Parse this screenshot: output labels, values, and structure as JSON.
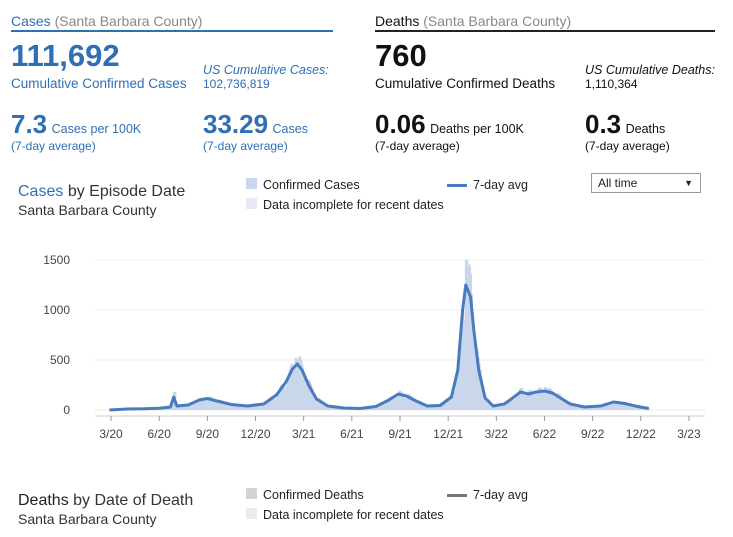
{
  "cases_panel": {
    "tab_title": "Cases",
    "tab_county": "(Santa Barbara County)",
    "total": "111,692",
    "total_label": "Cumulative Confirmed Cases",
    "us_label": "US Cumulative Cases:",
    "us_value": "102,736,819",
    "rate_value": "7.3",
    "rate_label": "Cases per 100K",
    "rate_note": "(7-day average)",
    "avg_value": "33.29",
    "avg_label": "Cases",
    "avg_note": "(7-day average)"
  },
  "deaths_panel": {
    "tab_title": "Deaths",
    "tab_county": "(Santa Barbara County)",
    "total": "760",
    "total_label": "Cumulative Confirmed Deaths",
    "us_label": "US Cumulative Deaths:",
    "us_value": "1,110,364",
    "rate_value": "0.06",
    "rate_label": "Deaths per 100K",
    "rate_note": "(7-day average)",
    "avg_value": "0.3",
    "avg_label": "Deaths",
    "avg_note": "(7-day average)"
  },
  "cases_chart": {
    "title_highlight": "Cases",
    "title_rest": "by Episode Date",
    "subtitle": "Santa Barbara County",
    "legend_confirmed": "Confirmed Cases",
    "legend_avg": "7-day avg",
    "legend_incomplete": "Data incomplete for recent dates",
    "range_select": "All time"
  },
  "deaths_chart": {
    "title_highlight": "Deaths",
    "title_rest": "by Date of Death",
    "subtitle": "Santa Barbara County",
    "legend_confirmed": "Confirmed Deaths",
    "legend_avg": "7-day avg",
    "legend_incomplete": "Data incomplete for recent dates"
  },
  "colors": {
    "accent": "#2f6fb5",
    "bar": "#c9d6ec",
    "avg_line": "#4a7bbd",
    "death_avg_line": "#777777",
    "death_bar": "#d3d3d3"
  },
  "chart_data": {
    "type": "area",
    "title": "Cases by Episode Date",
    "subtitle": "Santa Barbara County",
    "xlabel": "",
    "ylabel": "",
    "ylim": [
      0,
      1500
    ],
    "yticks": [
      0,
      500,
      1000,
      1500
    ],
    "xticks": [
      "3/20",
      "6/20",
      "9/20",
      "12/20",
      "3/21",
      "6/21",
      "9/21",
      "12/21",
      "3/22",
      "6/22",
      "9/22",
      "12/22",
      "3/23"
    ],
    "x_months_from_jan2020_range": [
      1,
      39
    ],
    "series": [
      {
        "name": "7-day avg",
        "type": "line",
        "points": [
          [
            1.9,
            0
          ],
          [
            3.0,
            10
          ],
          [
            4.0,
            12
          ],
          [
            5.0,
            18
          ],
          [
            5.7,
            30
          ],
          [
            5.9,
            130
          ],
          [
            6.1,
            40
          ],
          [
            6.8,
            50
          ],
          [
            7.5,
            100
          ],
          [
            8.0,
            115
          ],
          [
            8.6,
            90
          ],
          [
            9.5,
            55
          ],
          [
            10.5,
            40
          ],
          [
            11.5,
            60
          ],
          [
            12.3,
            150
          ],
          [
            12.9,
            280
          ],
          [
            13.3,
            410
          ],
          [
            13.6,
            460
          ],
          [
            13.9,
            400
          ],
          [
            14.3,
            250
          ],
          [
            14.8,
            110
          ],
          [
            15.5,
            40
          ],
          [
            16.5,
            20
          ],
          [
            17.5,
            15
          ],
          [
            18.5,
            35
          ],
          [
            19.3,
            100
          ],
          [
            19.9,
            160
          ],
          [
            20.4,
            140
          ],
          [
            21.0,
            90
          ],
          [
            21.7,
            40
          ],
          [
            22.5,
            45
          ],
          [
            23.2,
            130
          ],
          [
            23.6,
            400
          ],
          [
            23.9,
            1000
          ],
          [
            24.1,
            1250
          ],
          [
            24.4,
            1130
          ],
          [
            24.6,
            800
          ],
          [
            24.9,
            400
          ],
          [
            25.3,
            120
          ],
          [
            25.8,
            40
          ],
          [
            26.5,
            60
          ],
          [
            27.1,
            130
          ],
          [
            27.5,
            180
          ],
          [
            28.0,
            160
          ],
          [
            28.5,
            180
          ],
          [
            29.0,
            190
          ],
          [
            29.5,
            170
          ],
          [
            30.0,
            120
          ],
          [
            30.6,
            60
          ],
          [
            31.5,
            30
          ],
          [
            32.5,
            40
          ],
          [
            33.3,
            80
          ],
          [
            34.0,
            65
          ],
          [
            34.8,
            35
          ],
          [
            35.5,
            15
          ]
        ]
      },
      {
        "name": "Confirmed Cases",
        "type": "bar",
        "peaks": [
          [
            5.9,
            180
          ],
          [
            13.5,
            520
          ],
          [
            24.1,
            1500
          ],
          [
            27.5,
            220
          ],
          [
            29.0,
            230
          ]
        ]
      }
    ]
  }
}
